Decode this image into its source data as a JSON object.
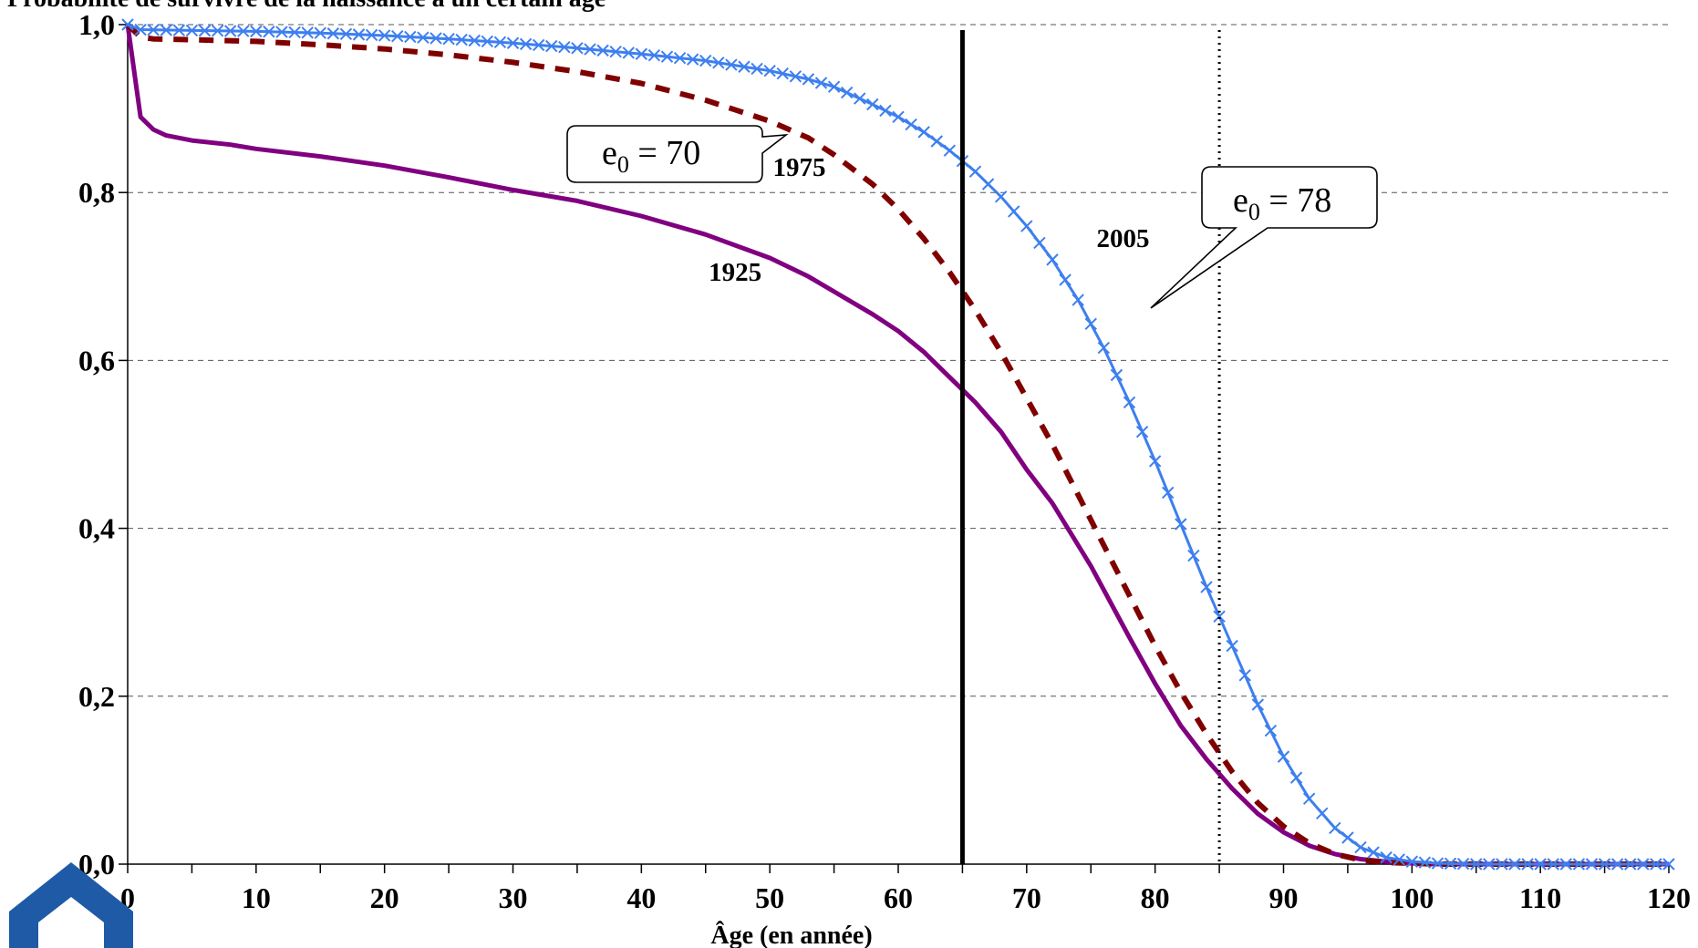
{
  "page_title": "Probabilité de survivre de la naissance à un certain âge",
  "chart_data": {
    "type": "line",
    "title": "Probabilité de survivre de la naissance à un certain âge",
    "xlabel": "Âge (en année)",
    "ylabel": "",
    "xlim": [
      0,
      120
    ],
    "ylim": [
      0,
      1
    ],
    "x_ticks": [
      0,
      10,
      20,
      30,
      40,
      50,
      60,
      70,
      80,
      90,
      100,
      110,
      120
    ],
    "x_tick_labels": [
      "0",
      "10",
      "20",
      "30",
      "40",
      "50",
      "60",
      "70",
      "80",
      "90",
      "100",
      "110",
      "120"
    ],
    "y_ticks": [
      0,
      0.2,
      0.4,
      0.6,
      0.8,
      1.0
    ],
    "y_tick_labels": [
      "0,0",
      "0,2",
      "0,4",
      "0,6",
      "0,8",
      "1,0"
    ],
    "grid": "horizontal dashed",
    "series": [
      {
        "name": "1925",
        "color": "#800080",
        "style": "solid",
        "x": [
          0,
          1,
          2,
          3,
          5,
          8,
          10,
          15,
          20,
          25,
          30,
          35,
          40,
          45,
          50,
          53,
          55,
          58,
          60,
          62,
          64,
          66,
          68,
          70,
          72,
          75,
          78,
          80,
          82,
          84,
          86,
          88,
          90,
          92,
          94,
          96,
          98,
          100,
          102,
          105,
          110,
          115,
          120
        ],
        "y": [
          1.0,
          0.89,
          0.875,
          0.868,
          0.862,
          0.857,
          0.852,
          0.843,
          0.832,
          0.818,
          0.803,
          0.79,
          0.772,
          0.75,
          0.722,
          0.7,
          0.682,
          0.655,
          0.635,
          0.61,
          0.58,
          0.55,
          0.515,
          0.47,
          0.43,
          0.355,
          0.27,
          0.215,
          0.165,
          0.125,
          0.09,
          0.06,
          0.038,
          0.022,
          0.012,
          0.006,
          0.003,
          0.001,
          0.0,
          0.0,
          0.0,
          0.0,
          0.0
        ]
      },
      {
        "name": "1975",
        "color": "#800000",
        "style": "dashed",
        "x": [
          0,
          1,
          2,
          5,
          10,
          15,
          20,
          25,
          30,
          35,
          40,
          45,
          50,
          53,
          55,
          58,
          60,
          62,
          64,
          66,
          68,
          70,
          72,
          74,
          76,
          78,
          80,
          82,
          84,
          86,
          88,
          90,
          92,
          94,
          96,
          98,
          100,
          102,
          105,
          110,
          115,
          120
        ],
        "y": [
          1.0,
          0.985,
          0.983,
          0.982,
          0.98,
          0.976,
          0.971,
          0.964,
          0.955,
          0.944,
          0.93,
          0.91,
          0.885,
          0.865,
          0.845,
          0.81,
          0.78,
          0.745,
          0.705,
          0.66,
          0.61,
          0.555,
          0.5,
          0.44,
          0.38,
          0.32,
          0.26,
          0.205,
          0.155,
          0.11,
          0.073,
          0.045,
          0.025,
          0.012,
          0.005,
          0.002,
          0.001,
          0.0,
          0.0,
          0.0,
          0.0,
          0.0
        ]
      },
      {
        "name": "2005",
        "color": "#3d7fef",
        "style": "solid-x-markers",
        "x": [
          0,
          1,
          5,
          10,
          15,
          20,
          25,
          30,
          35,
          40,
          45,
          50,
          53,
          55,
          58,
          60,
          62,
          64,
          66,
          68,
          70,
          72,
          74,
          76,
          78,
          80,
          82,
          84,
          85,
          86,
          88,
          90,
          92,
          94,
          96,
          98,
          100,
          102,
          105,
          110,
          115,
          120
        ],
        "y": [
          1.0,
          0.994,
          0.993,
          0.992,
          0.99,
          0.987,
          0.983,
          0.978,
          0.972,
          0.965,
          0.957,
          0.945,
          0.935,
          0.926,
          0.905,
          0.89,
          0.872,
          0.85,
          0.825,
          0.795,
          0.76,
          0.72,
          0.672,
          0.615,
          0.55,
          0.48,
          0.405,
          0.33,
          0.295,
          0.26,
          0.19,
          0.128,
          0.078,
          0.043,
          0.02,
          0.008,
          0.003,
          0.001,
          0.0,
          0.0,
          0.0,
          0.0
        ]
      }
    ],
    "vertical_lines": [
      {
        "x": 65,
        "style": "solid",
        "color": "#000000"
      },
      {
        "x": 85,
        "style": "dotted",
        "color": "#000000"
      }
    ],
    "curve_labels": [
      {
        "text": "1925",
        "x": 47.3,
        "y": 0.695
      },
      {
        "text": "1975",
        "x": 52.3,
        "y": 0.82
      },
      {
        "text": "2005",
        "x": 77.5,
        "y": 0.735
      }
    ],
    "callouts": [
      {
        "base": "e",
        "sub": "0",
        "rest": " = 70"
      },
      {
        "base": "e",
        "sub": "0",
        "rest": " = 78"
      }
    ]
  }
}
